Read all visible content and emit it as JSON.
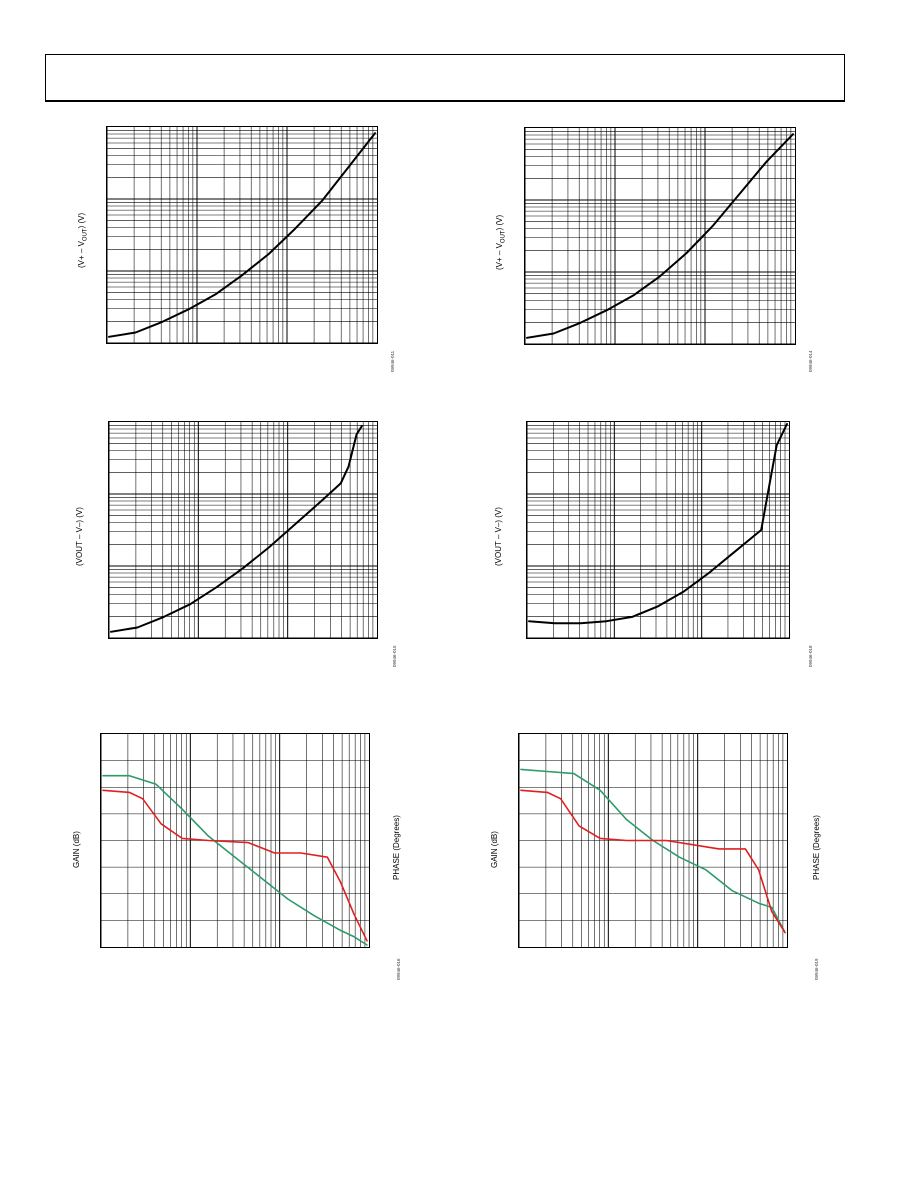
{
  "chart_data": [
    {
      "type": "line",
      "id": "c1",
      "ylabel": "(V+ – V",
      "ylabel_sub": "OUT",
      "ylabel_tail": ") (V)",
      "figure_id": "09946-011",
      "xscale": "log",
      "yscale": "log",
      "series": [
        {
          "color": "#000000",
          "x": [
            0.0,
            0.1,
            0.2,
            0.3,
            0.4,
            0.5,
            0.6,
            0.7,
            0.8,
            0.9,
            1.0
          ],
          "y": [
            0.02,
            0.04,
            0.09,
            0.15,
            0.22,
            0.31,
            0.41,
            0.53,
            0.66,
            0.82,
            0.98
          ]
        }
      ]
    },
    {
      "type": "line",
      "id": "c2",
      "ylabel": "(VOUT – V–) (V)",
      "figure_id": "09946-015",
      "xscale": "log",
      "yscale": "log",
      "series": [
        {
          "color": "#000000",
          "x": [
            0.0,
            0.1,
            0.2,
            0.3,
            0.4,
            0.5,
            0.6,
            0.7,
            0.8,
            0.87,
            0.9,
            0.93,
            0.95
          ],
          "y": [
            0.02,
            0.04,
            0.09,
            0.15,
            0.23,
            0.32,
            0.42,
            0.53,
            0.64,
            0.72,
            0.8,
            0.95,
            0.99
          ]
        }
      ]
    },
    {
      "type": "line",
      "id": "c3",
      "ylabel": "GAIN (dB)",
      "y2label": "PHASE (Degrees)",
      "figure_id": "09946-016",
      "xscale": "log",
      "series": [
        {
          "color": "#2e9a6a",
          "x": [
            0.0,
            0.1,
            0.2,
            0.3,
            0.4,
            0.5,
            0.6,
            0.7,
            0.8,
            0.9,
            0.95,
            1.0
          ],
          "y": [
            0.81,
            0.81,
            0.77,
            0.65,
            0.52,
            0.42,
            0.32,
            0.22,
            0.14,
            0.07,
            0.04,
            0.0
          ]
        },
        {
          "color": "#e02020",
          "x": [
            0.0,
            0.1,
            0.15,
            0.22,
            0.3,
            0.4,
            0.55,
            0.65,
            0.75,
            0.85,
            0.9,
            0.95,
            1.0
          ],
          "y": [
            0.74,
            0.73,
            0.7,
            0.58,
            0.51,
            0.5,
            0.49,
            0.44,
            0.44,
            0.42,
            0.3,
            0.15,
            0.02
          ]
        }
      ]
    },
    {
      "type": "line",
      "id": "c4",
      "ylabel": "(V+ – V",
      "ylabel_sub": "OUT",
      "ylabel_tail": ") (V)",
      "figure_id": "09946-014",
      "xscale": "log",
      "yscale": "log",
      "series": [
        {
          "color": "#000000",
          "x": [
            0.0,
            0.1,
            0.2,
            0.3,
            0.4,
            0.5,
            0.6,
            0.7,
            0.8,
            0.9,
            1.0
          ],
          "y": [
            0.02,
            0.04,
            0.09,
            0.15,
            0.22,
            0.31,
            0.42,
            0.55,
            0.7,
            0.85,
            0.98
          ]
        }
      ]
    },
    {
      "type": "line",
      "id": "c5",
      "ylabel": "(VOUT – V–) (V)",
      "figure_id": "09946-018",
      "xscale": "log",
      "yscale": "log",
      "series": [
        {
          "color": "#000000",
          "x": [
            0.0,
            0.1,
            0.2,
            0.3,
            0.4,
            0.5,
            0.6,
            0.7,
            0.8,
            0.9,
            0.93,
            0.96,
            1.0
          ],
          "y": [
            0.07,
            0.06,
            0.06,
            0.07,
            0.09,
            0.14,
            0.21,
            0.3,
            0.4,
            0.5,
            0.7,
            0.9,
            1.0
          ]
        }
      ]
    },
    {
      "type": "line",
      "id": "c6",
      "ylabel": "GAIN (dB)",
      "y2label": "PHASE (Degrees)",
      "figure_id": "09946-019",
      "xscale": "log",
      "series": [
        {
          "color": "#2e9a6a",
          "x": [
            0.0,
            0.1,
            0.2,
            0.3,
            0.4,
            0.5,
            0.6,
            0.7,
            0.8,
            0.9,
            0.95,
            1.0
          ],
          "y": [
            0.84,
            0.83,
            0.82,
            0.74,
            0.6,
            0.5,
            0.42,
            0.36,
            0.26,
            0.2,
            0.18,
            0.06
          ]
        },
        {
          "color": "#e02020",
          "x": [
            0.0,
            0.1,
            0.15,
            0.22,
            0.3,
            0.4,
            0.55,
            0.65,
            0.75,
            0.85,
            0.9,
            0.95,
            1.0
          ],
          "y": [
            0.74,
            0.73,
            0.7,
            0.57,
            0.51,
            0.5,
            0.5,
            0.48,
            0.46,
            0.46,
            0.36,
            0.16,
            0.06
          ]
        }
      ]
    }
  ]
}
